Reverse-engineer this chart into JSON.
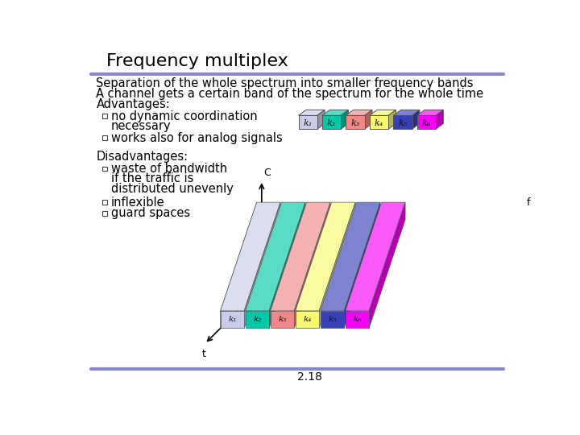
{
  "title": "Frequency multiplex",
  "title_fontsize": 16,
  "line1": "Separation of the whole spectrum into smaller frequency bands",
  "line2": "A channel gets a certain band of the spectrum for the whole time",
  "advantages_title": "Advantages:",
  "disadvantages_title": "Disadvantages:",
  "page_num": "2.18",
  "channel_colors": [
    "#c8cce8",
    "#00c8a8",
    "#f08888",
    "#f8f870",
    "#3840b8",
    "#f800f8"
  ],
  "channel_labels": [
    "k₁",
    "k₂",
    "k₃",
    "k₄",
    "k₅",
    "k₆"
  ],
  "bg_color": "#ffffff",
  "header_line_color": "#8888cc",
  "footer_line_color": "#8888cc",
  "text_color": "#000000",
  "text_fontsize": 10.5,
  "body_font": "DejaVu Sans"
}
